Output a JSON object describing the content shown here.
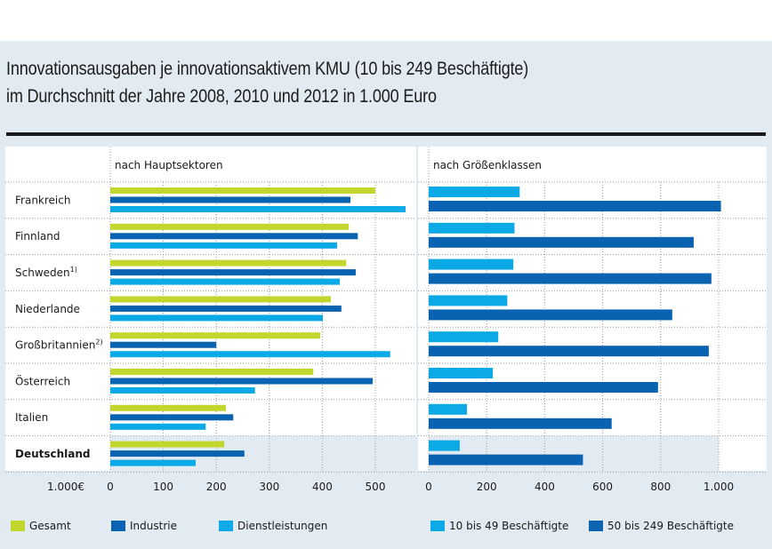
{
  "title_line1": "Innovationsausgaben je innovationsaktivem KMU (10 bis 249 Beschäftigte)",
  "title_line2": "im Durchschnitt der Jahre 2008, 2010 und 2012 in 1.000 Euro",
  "colors": {
    "gesamt": "#c2d62e",
    "industrie": "#0a63b0",
    "dienstleistungen": "#0ba9e6",
    "klein": "#0ba9e6",
    "gross": "#0a63b0",
    "highlight_bg": "#e3ebf2"
  },
  "chart_data": [
    {
      "type": "bar",
      "orientation": "horizontal",
      "panel_title": "nach Hauptsektoren",
      "categories": [
        "Frankreich",
        "Finnland",
        "Schweden",
        "Niederlande",
        "Großbritannien",
        "Österreich",
        "Italien",
        "Deutschland"
      ],
      "category_superscripts": [
        "",
        "",
        "1)",
        "",
        "2)",
        "",
        "",
        ""
      ],
      "highlight_category": "Deutschland",
      "series": [
        {
          "name": "Gesamt",
          "color_key": "gesamt",
          "values": [
            500,
            450,
            445,
            416,
            396,
            383,
            218,
            215
          ]
        },
        {
          "name": "Industrie",
          "color_key": "industrie",
          "values": [
            453,
            467,
            463,
            436,
            200,
            495,
            232,
            253
          ]
        },
        {
          "name": "Dienstleistungen",
          "color_key": "dienstleistungen",
          "values": [
            557,
            428,
            433,
            401,
            528,
            273,
            180,
            161
          ]
        }
      ],
      "xlabel": "1.000€",
      "xticks": [
        0,
        100,
        200,
        300,
        400,
        500
      ],
      "xtick_labels": [
        "0",
        "100",
        "200",
        "300",
        "400",
        "500"
      ],
      "xlim": [
        0,
        575
      ],
      "grid": true,
      "legend": "bottom-left"
    },
    {
      "type": "bar",
      "orientation": "horizontal",
      "panel_title": "nach Größenklassen",
      "categories": [
        "Frankreich",
        "Finnland",
        "Schweden",
        "Niederlande",
        "Großbritannien",
        "Österreich",
        "Italien",
        "Deutschland"
      ],
      "highlight_category": "Deutschland",
      "series": [
        {
          "name": "10 bis 49 Beschäftigte",
          "color_key": "klein",
          "values": [
            314,
            296,
            292,
            271,
            240,
            221,
            132,
            107
          ]
        },
        {
          "name": "50 bis 249 Beschäftigte",
          "color_key": "gross",
          "values": [
            1008,
            914,
            975,
            840,
            966,
            791,
            631,
            532
          ]
        }
      ],
      "xticks": [
        0,
        200,
        400,
        600,
        800,
        1000
      ],
      "xtick_labels": [
        "0",
        "200",
        "400",
        "600",
        "800",
        "1.000"
      ],
      "xlim": [
        0,
        1170
      ],
      "grid": true,
      "legend": "bottom-right"
    }
  ]
}
